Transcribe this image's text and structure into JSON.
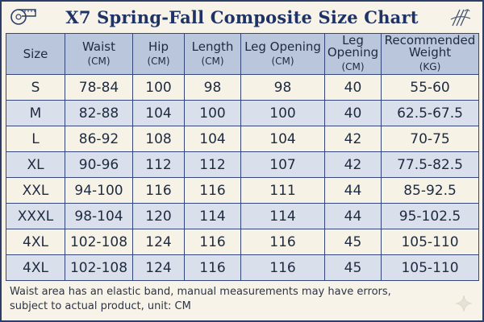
{
  "title": "X7 Spring-Fall Composite Size Chart",
  "icons": {
    "left": "measuring-tape-icon",
    "right": "sketch-hanger-icon",
    "corner": "sparkle-icon"
  },
  "colors": {
    "header_bg": "#b9c6dc",
    "row_alt": "#d9e0ec",
    "row_base": "#f6f2e6",
    "border": "#35477a",
    "title": "#1e3266"
  },
  "table": {
    "headers": [
      {
        "label": "Size",
        "unit": ""
      },
      {
        "label": "Waist",
        "unit": "(CM)"
      },
      {
        "label": "Hip",
        "unit": "(CM)"
      },
      {
        "label": "Length",
        "unit": "(CM)"
      },
      {
        "label": "Leg Opening",
        "unit": "(CM)"
      },
      {
        "label": "Leg Opening",
        "unit": "(CM)"
      },
      {
        "label": "Recommended Weight",
        "unit": "(KG)"
      }
    ],
    "rows": [
      [
        "S",
        "78-84",
        "100",
        "98",
        "98",
        "40",
        "55-60"
      ],
      [
        "M",
        "82-88",
        "104",
        "100",
        "100",
        "40",
        "62.5-67.5"
      ],
      [
        "L",
        "86-92",
        "108",
        "104",
        "104",
        "42",
        "70-75"
      ],
      [
        "XL",
        "90-96",
        "112",
        "112",
        "107",
        "42",
        "77.5-82.5"
      ],
      [
        "XXL",
        "94-100",
        "116",
        "116",
        "111",
        "44",
        "85-92.5"
      ],
      [
        "XXXL",
        "98-104",
        "120",
        "114",
        "114",
        "44",
        "95-102.5"
      ],
      [
        "4XL",
        "102-108",
        "124",
        "116",
        "116",
        "45",
        "105-110"
      ],
      [
        "4XL",
        "102-108",
        "124",
        "116",
        "116",
        "45",
        "105-110"
      ]
    ]
  },
  "note": {
    "line1": "Waist area has an elastic band, manual measurements may have errors,",
    "line2": "subject to actual product, unit: CM"
  }
}
